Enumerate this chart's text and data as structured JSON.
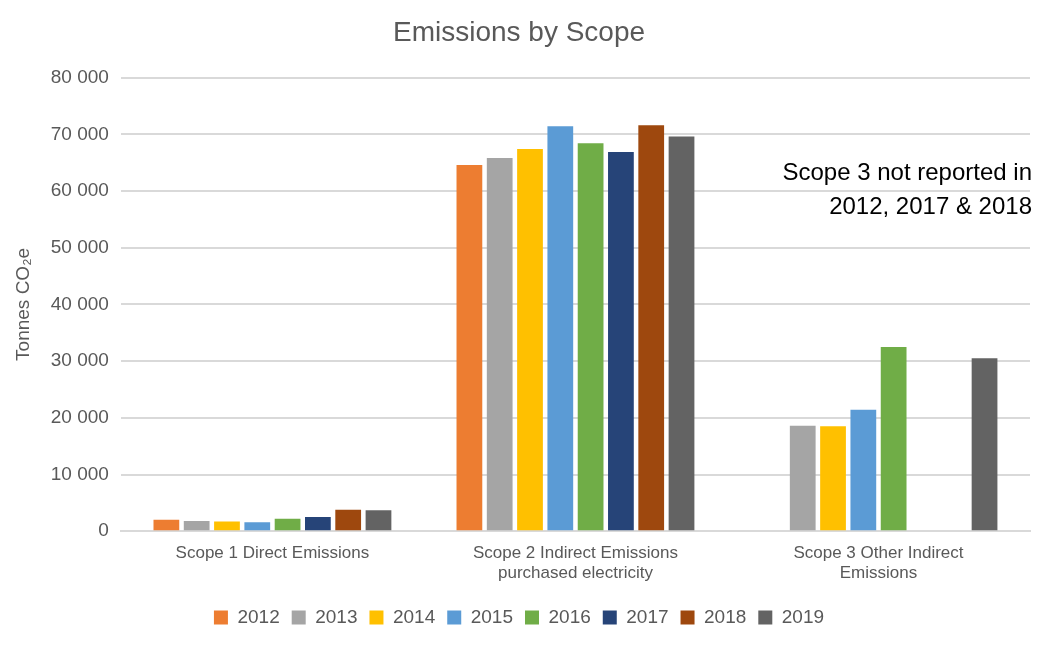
{
  "chart_data": {
    "type": "bar",
    "title": "Emissions by Scope",
    "ylabel": "Tonnes CO₂e",
    "categories": [
      "Scope 1 Direct Emissions",
      "Scope 2 Indirect Emissions purchased electricity",
      "Scope 3 Other Indirect Emissions"
    ],
    "series": [
      {
        "name": "2012",
        "color": "#ed7d31",
        "values": [
          2000,
          64600,
          null
        ]
      },
      {
        "name": "2013",
        "color": "#a5a5a5",
        "values": [
          1800,
          65800,
          18600
        ]
      },
      {
        "name": "2014",
        "color": "#ffc000",
        "values": [
          1700,
          67400,
          18500
        ]
      },
      {
        "name": "2015",
        "color": "#5b9bd5",
        "values": [
          1600,
          71400,
          21400
        ]
      },
      {
        "name": "2016",
        "color": "#70ad47",
        "values": [
          2200,
          68400,
          32500
        ]
      },
      {
        "name": "2017",
        "color": "#264478",
        "values": [
          2500,
          66900,
          null
        ]
      },
      {
        "name": "2018",
        "color": "#9e480e",
        "values": [
          3800,
          71600,
          null
        ]
      },
      {
        "name": "2019",
        "color": "#636363",
        "values": [
          3700,
          69600,
          30500
        ]
      }
    ],
    "ylim": [
      0,
      80000
    ],
    "yticks": [
      {
        "value": 0,
        "label": "0"
      },
      {
        "value": 10000,
        "label": "10 000"
      },
      {
        "value": 20000,
        "label": "20 000"
      },
      {
        "value": 30000,
        "label": "30 000"
      },
      {
        "value": 40000,
        "label": "40 000"
      },
      {
        "value": 50000,
        "label": "50 000"
      },
      {
        "value": 60000,
        "label": "60 000"
      },
      {
        "value": 70000,
        "label": "70 000"
      },
      {
        "value": 80000,
        "label": "80 000"
      }
    ],
    "grid": "y",
    "legend": "bottom",
    "annotations": [
      "Scope 3 not reported in 2012, 2017 & 2018"
    ]
  }
}
